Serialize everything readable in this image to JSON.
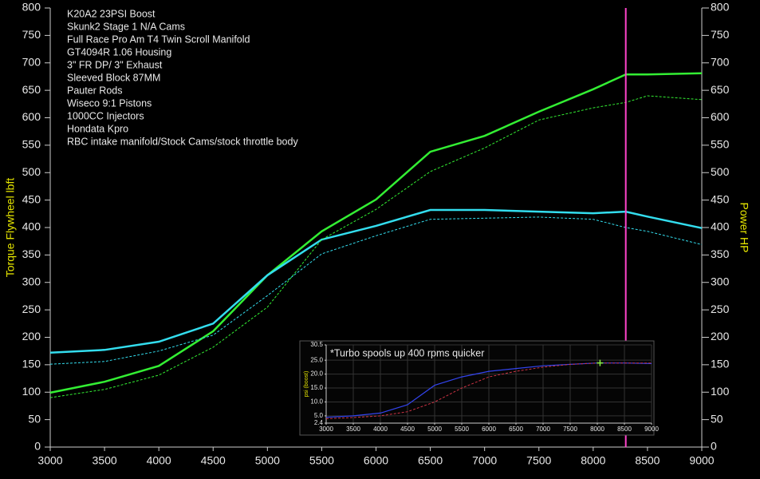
{
  "chart_data": [
    {
      "type": "line",
      "annotations": [
        "K20A2 23PSI Boost",
        "Skunk2 Stage 1 N/A Cams",
        "Full Race Pro Am T4 Twin Scroll Manifold",
        "GT4094R 1.06 Housing",
        "3\" FR DP/ 3\" Exhaust",
        "Sleeved Block 87MM",
        "Pauter Rods",
        "Wiseco 9:1 Pistons",
        "1000CC Injectors",
        "Hondata Kpro",
        "RBC intake manifold/Stock Cams/stock throttle body"
      ],
      "ylabel": "Torque Flywheel lbft",
      "y2label": "Power HP",
      "x": [
        3000,
        3500,
        4000,
        4500,
        5000,
        5500,
        6000,
        6500,
        7000,
        7500,
        8000,
        8300,
        8500,
        9000
      ],
      "series": [
        {
          "color": "#33ee33",
          "dashed": false,
          "values": [
            99,
            119,
            148,
            211,
            313,
            393,
            451,
            538,
            567,
            611,
            652,
            679,
            679,
            681
          ]
        },
        {
          "color": "#33ddee",
          "dashed": false,
          "values": [
            172,
            177,
            192,
            225,
            313,
            378,
            403,
            432,
            432,
            429,
            426,
            429,
            420,
            399
          ]
        },
        {
          "color": "#33ee33",
          "dashed": true,
          "values": [
            90,
            105,
            131,
            182,
            255,
            378,
            433,
            502,
            545,
            596,
            618,
            628,
            640,
            633
          ]
        },
        {
          "color": "#33ddee",
          "dashed": true,
          "values": [
            151,
            156,
            175,
            204,
            276,
            352,
            385,
            415,
            417,
            419,
            415,
            400,
            393,
            369
          ]
        }
      ],
      "xlim": [
        3000,
        9000
      ],
      "xticks": [
        3000,
        3500,
        4000,
        4500,
        5000,
        5500,
        6000,
        6500,
        7000,
        7500,
        8000,
        8500,
        9000
      ],
      "ylim": [
        0,
        800
      ],
      "yticks": [
        0,
        50,
        100,
        150,
        200,
        250,
        300,
        350,
        400,
        450,
        500,
        550,
        600,
        650,
        700,
        750,
        800
      ],
      "y2lim": [
        0,
        800
      ],
      "y2ticks": [
        0,
        50,
        100,
        150,
        200,
        250,
        300,
        350,
        400,
        450,
        500,
        550,
        600,
        650,
        700,
        750,
        800
      ],
      "cursor_x": 8300,
      "cursor_color": "#ff44cc",
      "grid": false
    },
    {
      "type": "line",
      "title": "*Turbo spools up 400 rpms quicker",
      "ylabel": "psi (boost)",
      "x": [
        3000,
        3500,
        4000,
        4500,
        5000,
        5500,
        6000,
        6500,
        7000,
        7500,
        8000,
        8500,
        9000
      ],
      "series": [
        {
          "color": "#3344ee",
          "dashed": false,
          "values": [
            4.5,
            5,
            6,
            9,
            16,
            19,
            21,
            22,
            23,
            23.5,
            24,
            24,
            23.8
          ]
        },
        {
          "color": "#cc3344",
          "dashed": true,
          "values": [
            4,
            4.4,
            5,
            6.5,
            10,
            15,
            19,
            21,
            22.5,
            23.5,
            24,
            24,
            24
          ]
        }
      ],
      "xlim": [
        3000,
        9000
      ],
      "xticks": [
        3000,
        3500,
        4000,
        4500,
        5000,
        5500,
        6000,
        6500,
        7000,
        7500,
        8000,
        8500,
        9000
      ],
      "ylim": [
        2.4,
        30.5
      ],
      "yticks": [
        2.4,
        {
          "value": 5,
          "label": "5.0"
        },
        {
          "value": 10,
          "label": "10.0"
        },
        {
          "value": 15,
          "label": "15.0"
        },
        {
          "value": 20,
          "label": "20.0"
        },
        {
          "value": 25,
          "label": "25.0"
        },
        30.5
      ],
      "marker": {
        "x": 8050,
        "y": 24,
        "color": "#88ee44"
      },
      "grid": true
    }
  ]
}
